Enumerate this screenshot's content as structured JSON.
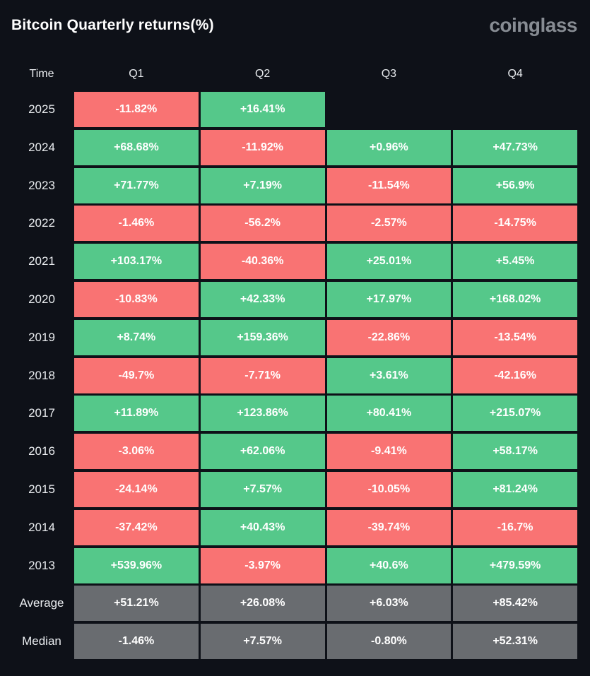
{
  "header": {
    "title": "Bitcoin Quarterly returns(%)",
    "logo_text": "coinglass"
  },
  "colors": {
    "background": "#0e1118",
    "positive": "#55c88a",
    "negative": "#f97373",
    "neutral": "#696c70",
    "logo": "#878c93",
    "cell_text": "#ffffff"
  },
  "chart_data": {
    "type": "table",
    "title": "Bitcoin Quarterly returns(%)",
    "columns": [
      "Time",
      "Q1",
      "Q2",
      "Q3",
      "Q4"
    ],
    "rows": [
      {
        "label": "2025",
        "type": "year",
        "values": [
          "-11.82%",
          "+16.41%",
          null,
          null
        ]
      },
      {
        "label": "2024",
        "type": "year",
        "values": [
          "+68.68%",
          "-11.92%",
          "+0.96%",
          "+47.73%"
        ]
      },
      {
        "label": "2023",
        "type": "year",
        "values": [
          "+71.77%",
          "+7.19%",
          "-11.54%",
          "+56.9%"
        ]
      },
      {
        "label": "2022",
        "type": "year",
        "values": [
          "-1.46%",
          "-56.2%",
          "-2.57%",
          "-14.75%"
        ]
      },
      {
        "label": "2021",
        "type": "year",
        "values": [
          "+103.17%",
          "-40.36%",
          "+25.01%",
          "+5.45%"
        ]
      },
      {
        "label": "2020",
        "type": "year",
        "values": [
          "-10.83%",
          "+42.33%",
          "+17.97%",
          "+168.02%"
        ]
      },
      {
        "label": "2019",
        "type": "year",
        "values": [
          "+8.74%",
          "+159.36%",
          "-22.86%",
          "-13.54%"
        ]
      },
      {
        "label": "2018",
        "type": "year",
        "values": [
          "-49.7%",
          "-7.71%",
          "+3.61%",
          "-42.16%"
        ]
      },
      {
        "label": "2017",
        "type": "year",
        "values": [
          "+11.89%",
          "+123.86%",
          "+80.41%",
          "+215.07%"
        ]
      },
      {
        "label": "2016",
        "type": "year",
        "values": [
          "-3.06%",
          "+62.06%",
          "-9.41%",
          "+58.17%"
        ]
      },
      {
        "label": "2015",
        "type": "year",
        "values": [
          "-24.14%",
          "+7.57%",
          "-10.05%",
          "+81.24%"
        ]
      },
      {
        "label": "2014",
        "type": "year",
        "values": [
          "-37.42%",
          "+40.43%",
          "-39.74%",
          "-16.7%"
        ]
      },
      {
        "label": "2013",
        "type": "year",
        "values": [
          "+539.96%",
          "-3.97%",
          "+40.6%",
          "+479.59%"
        ]
      },
      {
        "label": "Average",
        "type": "summary",
        "values": [
          "+51.21%",
          "+26.08%",
          "+6.03%",
          "+85.42%"
        ]
      },
      {
        "label": "Median",
        "type": "summary",
        "values": [
          "-1.46%",
          "+7.57%",
          "-0.80%",
          "+52.31%"
        ]
      }
    ]
  }
}
